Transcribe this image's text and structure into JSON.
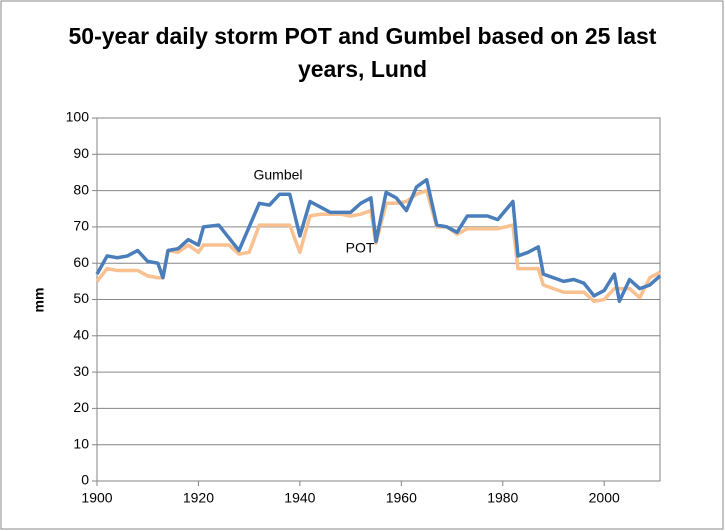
{
  "chart_data": {
    "type": "line",
    "title": "50-year daily storm POT and Gumbel based on 25 last years, Lund",
    "y_label": "mm",
    "x": [
      1900,
      1902,
      1904,
      1906,
      1908,
      1910,
      1912,
      1913,
      1914,
      1916,
      1918,
      1920,
      1921,
      1924,
      1926,
      1928,
      1930,
      1932,
      1934,
      1936,
      1938,
      1940,
      1942,
      1944,
      1946,
      1948,
      1950,
      1952,
      1954,
      1955,
      1957,
      1959,
      1961,
      1963,
      1965,
      1967,
      1969,
      1971,
      1973,
      1975,
      1977,
      1979,
      1982,
      1983,
      1985,
      1987,
      1988,
      1990,
      1992,
      1994,
      1996,
      1998,
      2000,
      2002,
      2003,
      2005,
      2007,
      2009,
      2011
    ],
    "series": [
      {
        "name": "Gumbel",
        "color": "#4a7ebb",
        "values": [
          57,
          62,
          61.5,
          62,
          63.5,
          60.5,
          60,
          56,
          63.5,
          64,
          66.5,
          65,
          70,
          70.5,
          67,
          63.5,
          70,
          76.5,
          76,
          79,
          79,
          67.5,
          77,
          75.5,
          74,
          74,
          74,
          76.5,
          78,
          66,
          79.5,
          78,
          74.5,
          81,
          83,
          70.5,
          70,
          68.5,
          73,
          73,
          73,
          72,
          77,
          62,
          63,
          64.5,
          57,
          56,
          55,
          55.5,
          54.5,
          51,
          52.5,
          57,
          49.5,
          55.5,
          53,
          54,
          56.5
        ]
      },
      {
        "name": "POT",
        "color": "#f9c090",
        "values": [
          55,
          58.5,
          58,
          58,
          58,
          56.5,
          56,
          56,
          63.5,
          63,
          65,
          63,
          65,
          65,
          65,
          62.5,
          63,
          70.5,
          70.5,
          70.5,
          70.5,
          63,
          73,
          73.5,
          73.5,
          73.5,
          73,
          73.5,
          74.5,
          65.5,
          76.5,
          76.5,
          77,
          79,
          80,
          70,
          70,
          68,
          69.5,
          69.5,
          69.5,
          69.5,
          70.5,
          58.5,
          58.5,
          58.5,
          54,
          53,
          52,
          52,
          52,
          49.5,
          50,
          53,
          53,
          53,
          50.5,
          56,
          57.5
        ]
      }
    ],
    "xlim": [
      1900,
      2011
    ],
    "xticks": [
      1900,
      1920,
      1940,
      1960,
      1980,
      2000
    ],
    "ylim": [
      0,
      100
    ],
    "yticks": [
      0,
      10,
      20,
      30,
      40,
      50,
      60,
      70,
      80,
      90,
      100
    ],
    "grid": true
  }
}
